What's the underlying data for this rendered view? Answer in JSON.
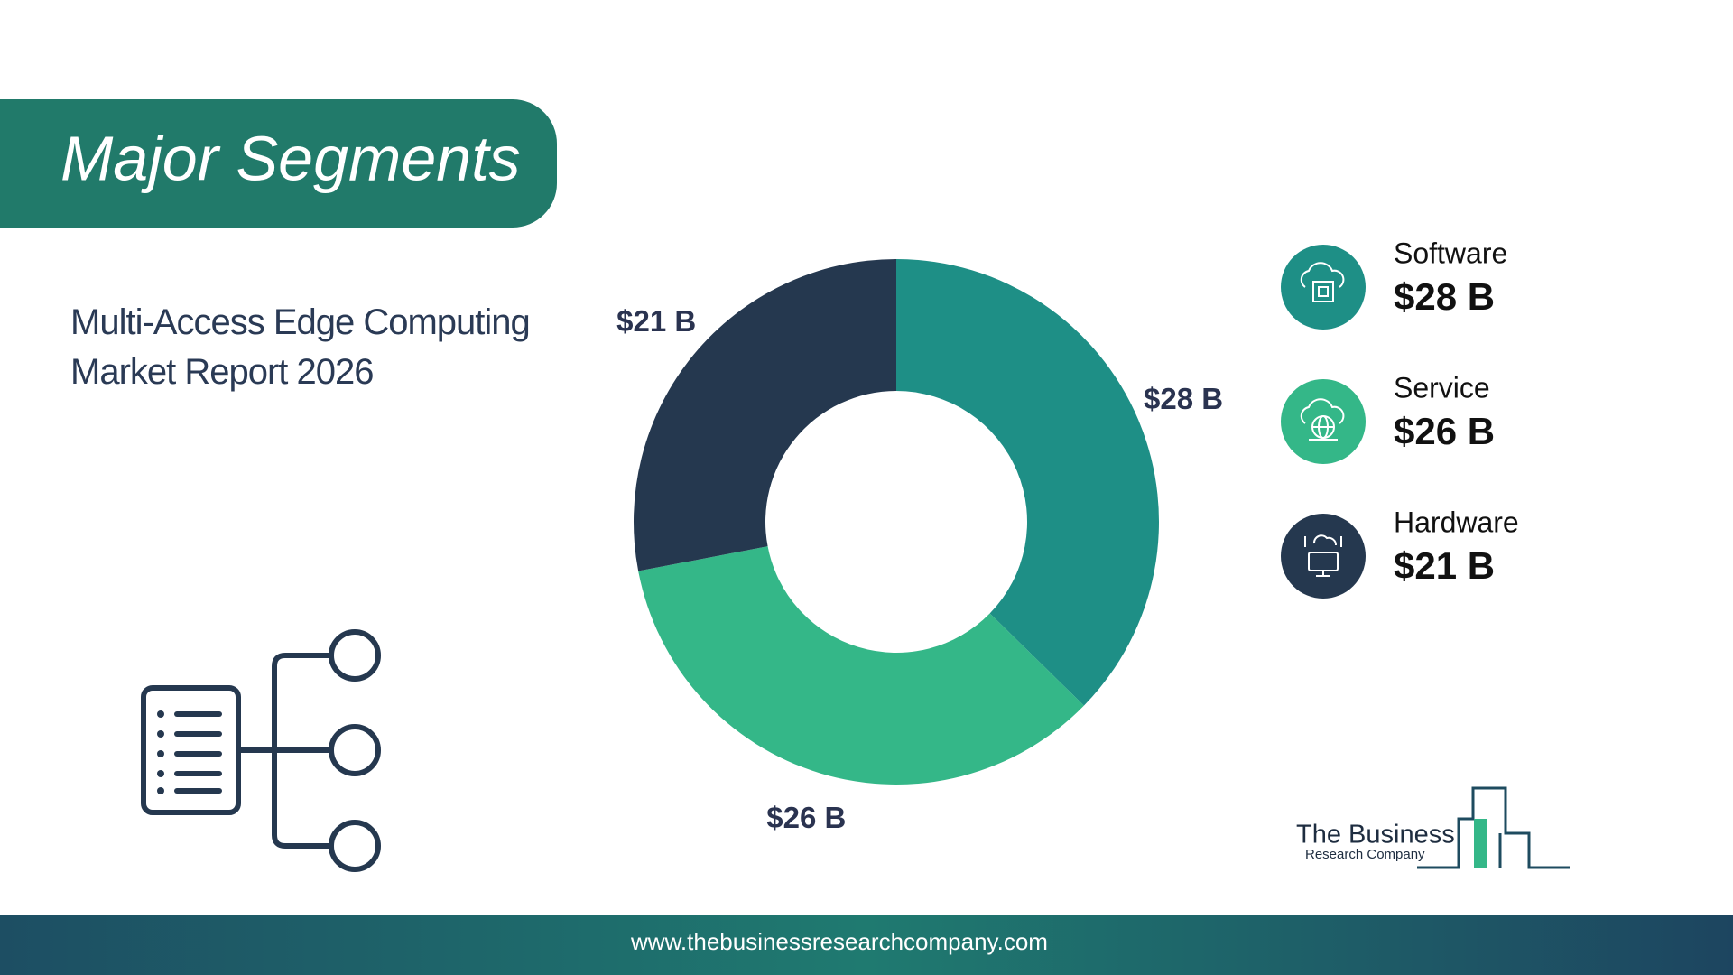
{
  "chart_data": {
    "type": "pie",
    "title": "Major Segments",
    "subtitle": "Multi-Access Edge Computing Market Report 2026",
    "categories": [
      "Software",
      "Service",
      "Hardware"
    ],
    "values": [
      28,
      26,
      21
    ],
    "value_labels": [
      "$28 B",
      "$26 B",
      "$21 B"
    ],
    "colors": [
      "#1e8f86",
      "#34b788",
      "#25384f"
    ],
    "donut": true
  },
  "logo": {
    "name": "The Business",
    "tagline": "Research Company"
  },
  "footer": {
    "url": "www.thebusinessresearchcompany.com"
  }
}
